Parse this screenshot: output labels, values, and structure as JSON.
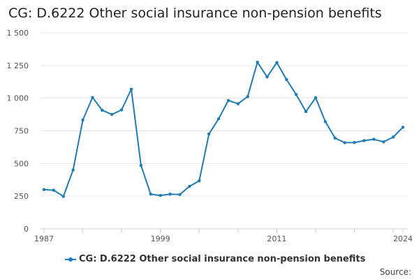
{
  "title": "CG: D.6222 Other social insurance non-pension benefits",
  "source_label": "Source:",
  "colors": {
    "series": "#1f7cb4",
    "grid": "#e6e6e6",
    "axis": "#cccccc"
  },
  "chart_data": {
    "type": "line",
    "title": "CG: D.6222 Other social insurance non-pension benefits",
    "xlabel": "",
    "ylabel": "",
    "ylim": [
      0,
      1500
    ],
    "xlim": [
      1987,
      2024
    ],
    "y_ticks": [
      0,
      250,
      500,
      750,
      1000,
      1250,
      1500
    ],
    "y_tick_labels": [
      "0",
      "250",
      "500",
      "750",
      "1 000",
      "1 250",
      "1 500"
    ],
    "x_tick_labels": [
      "1987",
      "1999",
      "2011",
      "2024"
    ],
    "grid": true,
    "legend": "bottom",
    "x": [
      1987,
      1988,
      1989,
      1990,
      1991,
      1992,
      1993,
      1994,
      1995,
      1996,
      1997,
      1998,
      1999,
      2000,
      2001,
      2002,
      2003,
      2004,
      2005,
      2006,
      2007,
      2008,
      2009,
      2010,
      2011,
      2012,
      2013,
      2014,
      2015,
      2016,
      2017,
      2018,
      2019,
      2020,
      2021,
      2022,
      2023,
      2024
    ],
    "series": [
      {
        "name": "CG: D.6222 Other social insurance non-pension benefits",
        "values": [
          300,
          295,
          248,
          450,
          833,
          1005,
          907,
          875,
          910,
          1068,
          485,
          265,
          255,
          265,
          262,
          325,
          367,
          725,
          842,
          982,
          957,
          1012,
          1275,
          1162,
          1272,
          1142,
          1027,
          897,
          1003,
          820,
          694,
          659,
          660,
          675,
          685,
          665,
          702,
          777
        ]
      }
    ]
  }
}
